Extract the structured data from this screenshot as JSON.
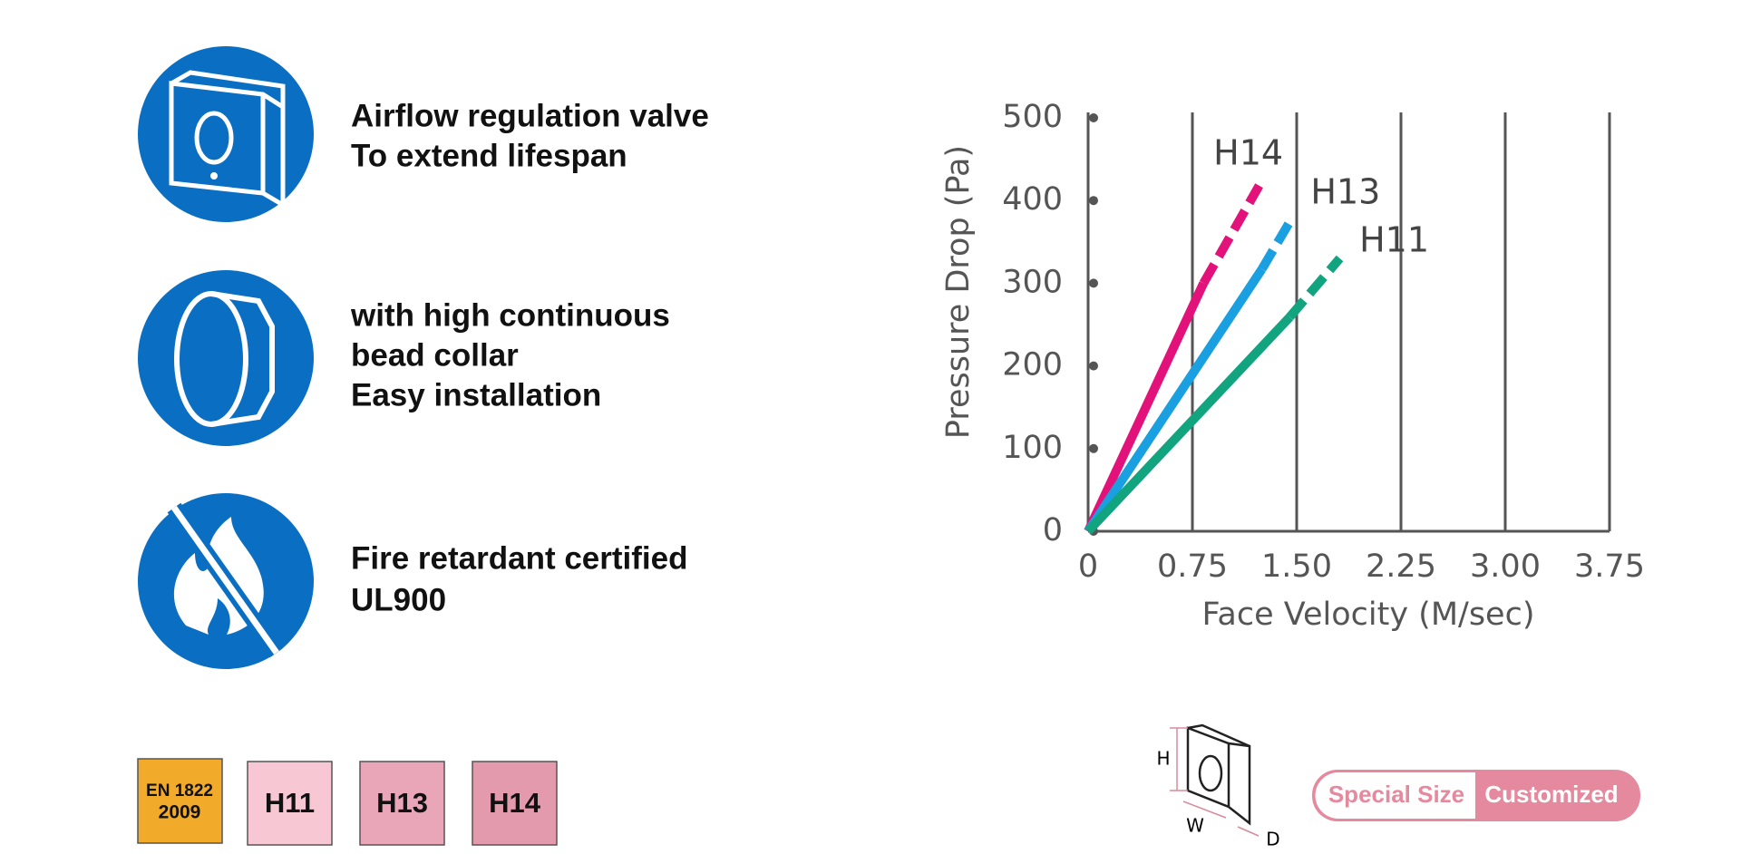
{
  "features": [
    {
      "lines": [
        "Airflow regulation valve",
        "To extend lifespan"
      ]
    },
    {
      "lines": [
        "with high continuous",
        "bead collar",
        "Easy installation"
      ]
    },
    {
      "lines": [
        "Fire retardant certified",
        "UL900"
      ]
    }
  ],
  "badges": {
    "standard": [
      "EN 1822",
      "2009"
    ],
    "grades": [
      "H11",
      "H13",
      "H14"
    ]
  },
  "chart_data": {
    "type": "line",
    "x_label": "Face Velocity (M/sec)",
    "y_label": "Pressure Drop (Pa)",
    "xlim": [
      0,
      3.75
    ],
    "ylim": [
      0,
      500
    ],
    "xticks": [
      0,
      0.75,
      {
        "value": 1.5,
        "label": "1.50"
      },
      2.25,
      {
        "value": 3,
        "label": "3.00"
      },
      3.75
    ],
    "yticks": [
      0,
      100,
      200,
      300,
      400,
      500
    ],
    "grid": true,
    "series": [
      {
        "name": "H14",
        "color": "#e2127a",
        "x": [
          0,
          0.83,
          1.23
        ],
        "values": [
          0,
          300,
          418
        ],
        "line_styles": [
          "solid",
          "dashed"
        ]
      },
      {
        "name": "H13",
        "color": "#1a9fe0",
        "x": [
          0,
          1.25,
          1.46
        ],
        "values": [
          0,
          317,
          377
        ],
        "line_styles": [
          "solid",
          "dashed"
        ]
      },
      {
        "name": "H11",
        "color": "#12a37f",
        "x": [
          0,
          1.45,
          1.81
        ],
        "values": [
          0,
          259,
          330
        ],
        "line_styles": [
          "solid",
          "dashed"
        ]
      }
    ]
  },
  "dimension_labels": [
    "H",
    "W",
    "D"
  ],
  "size_option": [
    "Special Size",
    "Customized"
  ]
}
